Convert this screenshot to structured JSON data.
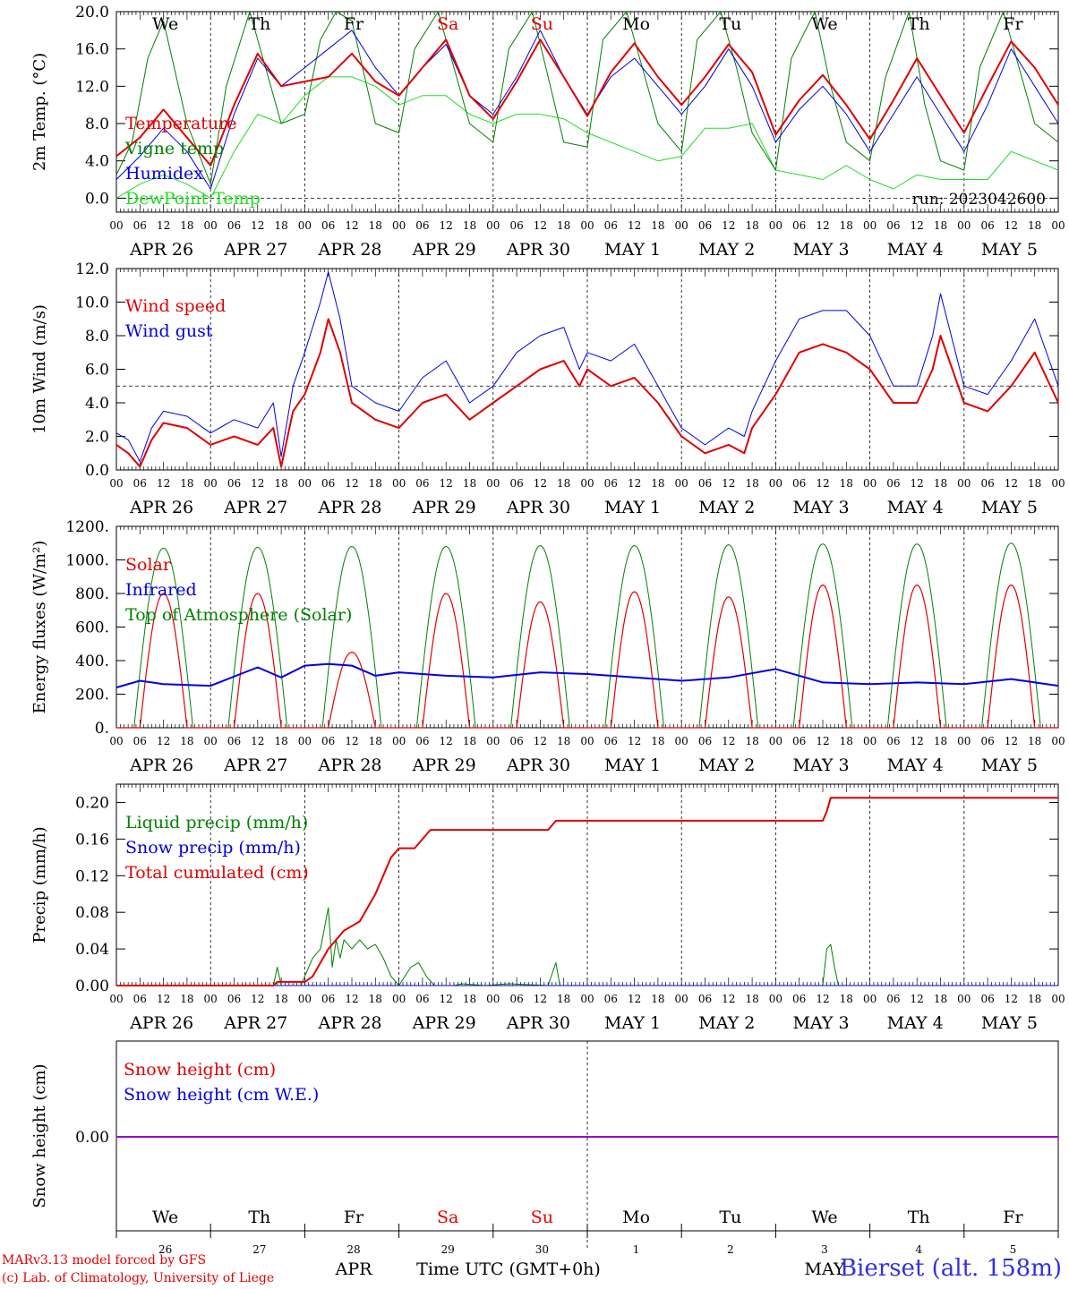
{
  "footer": {
    "model": "MARv3.13 model forced by GFS",
    "lab": "(c) Lab. of Climatology, University of Liege",
    "station": "Bierset (alt. 158m)"
  },
  "chart_data": {
    "type": "line",
    "x_unit": "hours since 2023-04-26 00 UTC",
    "hour_ticks": [
      "00",
      "06",
      "12",
      "18"
    ],
    "date_labels": [
      "APR 26",
      "APR 27",
      "APR 28",
      "APR 29",
      "APR 30",
      "MAY  1",
      "MAY  2",
      "MAY  3",
      "MAY  4",
      "MAY  5"
    ],
    "day_names": [
      "We",
      "Th",
      "Fr",
      "Sa",
      "Su",
      "Mo",
      "Tu",
      "We",
      "Th",
      "Fr"
    ],
    "day_colors": [
      "#000000",
      "#000000",
      "#000000",
      "#e00000",
      "#e00000",
      "#000000",
      "#000000",
      "#000000",
      "#000000",
      "#000000"
    ],
    "colors": {
      "red": "#e00000",
      "green": "#008000",
      "blue": "#0000e0",
      "lightgreen": "#22dd22",
      "purple": "#9900cc"
    },
    "panels": [
      {
        "id": "temperature",
        "ylabel": "2m Temp. (°C)",
        "ylim": [
          -1.5,
          20
        ],
        "yticks": [
          0,
          4,
          8,
          12,
          16,
          20
        ],
        "ytick_labels": [
          "0.0",
          "4.0",
          "8.0",
          "12.0",
          "16.0",
          "20.0"
        ],
        "ref_line": 0,
        "run_label": "run: 2023042600",
        "series": [
          {
            "name": "Temperature",
            "color": "#e00000",
            "width": 2,
            "x": [
              0,
              6,
              12,
              18,
              24,
              30,
              36,
              42,
              48,
              54,
              60,
              66,
              72,
              78,
              84,
              90,
              96,
              102,
              108,
              114,
              120,
              126,
              132,
              138,
              144,
              150,
              156,
              162,
              168,
              174,
              180,
              186,
              192,
              198,
              204,
              210,
              216,
              222,
              228,
              234,
              240
            ],
            "y": [
              4.5,
              6.5,
              9.5,
              6.5,
              3.5,
              10,
              15.5,
              12,
              12.5,
              13,
              15.5,
              12.5,
              11,
              14,
              17,
              11,
              8.5,
              12.5,
              17,
              13,
              8.8,
              13.5,
              16.6,
              13,
              10,
              13,
              16.5,
              13.5,
              6.8,
              10.5,
              13.2,
              10,
              6.3,
              10.5,
              15,
              11,
              7,
              12,
              16.8,
              14,
              10
            ]
          },
          {
            "name": "Vigne temp",
            "color": "#008000",
            "width": 1,
            "x": [
              0,
              4,
              8,
              12,
              18,
              24,
              28,
              34,
              38,
              42,
              48,
              52,
              56,
              60,
              66,
              72,
              76,
              82,
              86,
              90,
              96,
              100,
              106,
              110,
              114,
              120,
              124,
              130,
              134,
              138,
              144,
              148,
              154,
              158,
              162,
              168,
              172,
              178,
              182,
              186,
              192,
              196,
              202,
              206,
              210,
              216,
              220,
              226,
              230,
              234,
              240
            ],
            "y": [
              2.5,
              6,
              15,
              19,
              8,
              1.5,
              12,
              20,
              14,
              8,
              9,
              17,
              20,
              19,
              8,
              7,
              16,
              20,
              14,
              8,
              6,
              16,
              20,
              13,
              6,
              5.5,
              17,
              20,
              14,
              8,
              5,
              17,
              20,
              14,
              7,
              3,
              15,
              20,
              12,
              6,
              4,
              13,
              20,
              10,
              4,
              3,
              14,
              20,
              14,
              8,
              6
            ]
          },
          {
            "name": "Humidex",
            "color": "#0000e0",
            "width": 1,
            "x": [
              0,
              6,
              12,
              18,
              24,
              30,
              36,
              42,
              48,
              54,
              60,
              66,
              72,
              78,
              84,
              90,
              96,
              102,
              108,
              114,
              120,
              126,
              132,
              138,
              144,
              150,
              156,
              162,
              168,
              174,
              180,
              186,
              192,
              198,
              204,
              210,
              216,
              222,
              228,
              234,
              240
            ],
            "y": [
              2,
              4.5,
              7.5,
              5,
              1,
              9,
              15,
              12,
              14,
              16,
              18,
              14,
              11,
              14,
              16.5,
              11,
              9,
              13,
              18,
              13,
              9,
              13,
              15,
              12,
              9,
              12,
              16,
              12,
              6,
              9.5,
              12,
              9,
              5,
              9,
              13,
              9,
              5,
              10,
              16,
              12,
              8
            ]
          },
          {
            "name": "DewPoint Temp",
            "color": "#22dd22",
            "width": 1,
            "x": [
              0,
              6,
              12,
              18,
              24,
              30,
              36,
              42,
              48,
              54,
              60,
              66,
              72,
              78,
              84,
              90,
              96,
              102,
              108,
              114,
              120,
              126,
              132,
              138,
              144,
              150,
              156,
              162,
              168,
              174,
              180,
              186,
              192,
              198,
              204,
              210,
              216,
              222,
              228,
              234,
              240
            ],
            "y": [
              0,
              1.5,
              2.5,
              1.5,
              0,
              5,
              9,
              8,
              11,
              13,
              13,
              12,
              10,
              11,
              11,
              9,
              8,
              9,
              9,
              8.5,
              7,
              6,
              5,
              4,
              4.5,
              7.5,
              7.5,
              8,
              3,
              2.5,
              2,
              3.5,
              2,
              1,
              2.5,
              2,
              2,
              2,
              5,
              4,
              3
            ]
          }
        ]
      },
      {
        "id": "wind",
        "ylabel": "10m Wind (m/s)",
        "ylim": [
          0,
          12
        ],
        "yticks": [
          0,
          2,
          4,
          6,
          8,
          10,
          12
        ],
        "ytick_labels": [
          "0.0",
          "2.0",
          "4.0",
          "6.0",
          "8.0",
          "10.0",
          "12.0"
        ],
        "ref_line": 5,
        "series": [
          {
            "name": "Wind speed",
            "color": "#e00000",
            "width": 2,
            "x": [
              0,
              3,
              6,
              9,
              12,
              18,
              24,
              30,
              36,
              40,
              42,
              45,
              48,
              52,
              54,
              57,
              60,
              66,
              72,
              78,
              84,
              90,
              96,
              102,
              108,
              114,
              118,
              120,
              126,
              132,
              138,
              144,
              150,
              156,
              160,
              162,
              168,
              174,
              180,
              186,
              192,
              198,
              204,
              208,
              210,
              216,
              222,
              228,
              234,
              240
            ],
            "y": [
              1.5,
              1,
              0.2,
              1.8,
              2.8,
              2.5,
              1.5,
              2,
              1.5,
              2.5,
              0.2,
              3.5,
              4.5,
              7,
              9,
              7,
              4,
              3,
              2.5,
              4,
              4.5,
              3,
              4,
              5,
              6,
              6.5,
              5,
              6,
              5,
              5.5,
              4,
              2,
              1,
              1.5,
              1,
              2.5,
              4.5,
              7,
              7.5,
              7,
              6,
              4,
              4,
              6,
              8,
              4,
              3.5,
              5,
              7,
              4
            ]
          },
          {
            "name": "Wind gust",
            "color": "#0000e0",
            "width": 1,
            "x": [
              0,
              3,
              6,
              9,
              12,
              18,
              24,
              30,
              36,
              40,
              42,
              45,
              48,
              52,
              54,
              57,
              60,
              66,
              72,
              78,
              84,
              90,
              96,
              102,
              108,
              114,
              118,
              120,
              126,
              132,
              138,
              144,
              150,
              156,
              160,
              162,
              168,
              174,
              180,
              186,
              192,
              198,
              204,
              208,
              210,
              216,
              222,
              228,
              234,
              240
            ],
            "y": [
              2.2,
              1.8,
              0.5,
              2.5,
              3.5,
              3.2,
              2.2,
              3,
              2.5,
              4,
              0.8,
              5,
              7,
              10,
              11.8,
              9,
              5,
              4,
              3.5,
              5.5,
              6.5,
              4,
              5,
              7,
              8,
              8.5,
              6,
              7,
              6.5,
              7.5,
              5,
              2.5,
              1.5,
              2.5,
              2,
              3.5,
              6.5,
              9,
              9.5,
              9.5,
              8,
              5,
              5,
              8,
              10.5,
              5,
              4.5,
              6.5,
              9,
              5
            ]
          }
        ]
      },
      {
        "id": "energy",
        "ylabel": "Energy fluxes (W/m²)",
        "ylim": [
          0,
          1200
        ],
        "yticks": [
          0,
          200,
          400,
          600,
          800,
          1000,
          1200
        ],
        "ytick_labels": [
          "0.",
          "200.",
          "400.",
          "600.",
          "800.",
          "1000.",
          "1200."
        ],
        "toa_peaks": [
          1070,
          1075,
          1080,
          1080,
          1085,
          1085,
          1090,
          1095,
          1095,
          1100
        ],
        "solar_peaks": [
          800,
          800,
          450,
          800,
          750,
          810,
          780,
          850,
          850,
          850
        ],
        "infrared_x": [
          0,
          6,
          12,
          24,
          36,
          42,
          48,
          54,
          60,
          66,
          72,
          84,
          96,
          108,
          120,
          132,
          144,
          156,
          168,
          180,
          192,
          204,
          216,
          228,
          240
        ],
        "infrared_y": [
          240,
          280,
          260,
          250,
          360,
          300,
          370,
          380,
          370,
          310,
          330,
          310,
          300,
          330,
          320,
          300,
          280,
          300,
          350,
          270,
          260,
          270,
          260,
          290,
          250
        ],
        "series": [
          {
            "name": "Solar",
            "color": "#e00000",
            "width": 1
          },
          {
            "name": "Infrared",
            "color": "#0000e0",
            "width": 2
          },
          {
            "name": "Top of Atmosphere (Solar)",
            "color": "#008000",
            "width": 1
          }
        ]
      },
      {
        "id": "precip",
        "ylabel": "Precip (mm/h)",
        "ylim": [
          0,
          0.22
        ],
        "yticks": [
          0,
          0.04,
          0.08,
          0.12,
          0.16,
          0.2
        ],
        "ytick_labels": [
          "0.00",
          "0.04",
          "0.08",
          "0.12",
          "0.16",
          "0.20"
        ],
        "series": [
          {
            "name": "Liquid precip (mm/h)",
            "color": "#008000",
            "width": 1,
            "x": [
              0,
              40,
              41,
              42,
              47,
              48,
              50,
              52,
              54,
              55,
              56,
              57,
              58,
              60,
              62,
              64,
              66,
              68,
              70,
              72,
              75,
              77,
              79,
              81,
              84,
              86,
              88,
              94,
              100,
              110,
              112,
              113,
              116,
              120,
              170,
              180,
              181,
              182,
              183,
              184,
              240
            ],
            "y": [
              0,
              0,
              0.02,
              0,
              0,
              0.01,
              0.03,
              0.04,
              0.085,
              0.02,
              0.05,
              0.03,
              0.05,
              0.04,
              0.05,
              0.04,
              0.045,
              0.03,
              0.01,
              0,
              0.02,
              0.025,
              0.01,
              0,
              0,
              0,
              0.002,
              0,
              0.002,
              0,
              0.025,
              0,
              0,
              0,
              0,
              0,
              0.04,
              0.045,
              0.02,
              0,
              0
            ]
          },
          {
            "name": "Snow precip (mm/h)",
            "color": "#0000e0",
            "width": 1,
            "x": [
              0,
              240
            ],
            "y": [
              0,
              0
            ]
          },
          {
            "name": "Total cumulated (cm)",
            "color": "#e00000",
            "width": 2,
            "x": [
              0,
              40,
              41,
              48,
              50,
              54,
              58,
              62,
              66,
              70,
              72,
              74,
              76,
              78,
              80,
              84,
              100,
              110,
              112,
              132,
              170,
              180,
              181,
              182,
              240
            ],
            "y": [
              0,
              0,
              0.004,
              0.004,
              0.01,
              0.04,
              0.06,
              0.07,
              0.1,
              0.14,
              0.15,
              0.15,
              0.15,
              0.16,
              0.17,
              0.17,
              0.17,
              0.17,
              0.18,
              0.18,
              0.18,
              0.18,
              0.19,
              0.205,
              0.205
            ]
          }
        ]
      },
      {
        "id": "snow",
        "ylabel": "Snow height (cm)",
        "ytick_labels": [
          "0.00"
        ],
        "series": [
          {
            "name": "Snow height (cm)",
            "color": "#e00000"
          },
          {
            "name": "Snow height (cm W.E.)",
            "color": "#0000e0"
          }
        ]
      }
    ],
    "bottom_axis": {
      "day_numbers": [
        "26",
        "27",
        "28",
        "29",
        "30",
        "1",
        "2",
        "3",
        "4",
        "5"
      ],
      "month_apr": "APR",
      "month_may": "MAY",
      "xlabel": "Time UTC (GMT+0h)"
    }
  }
}
